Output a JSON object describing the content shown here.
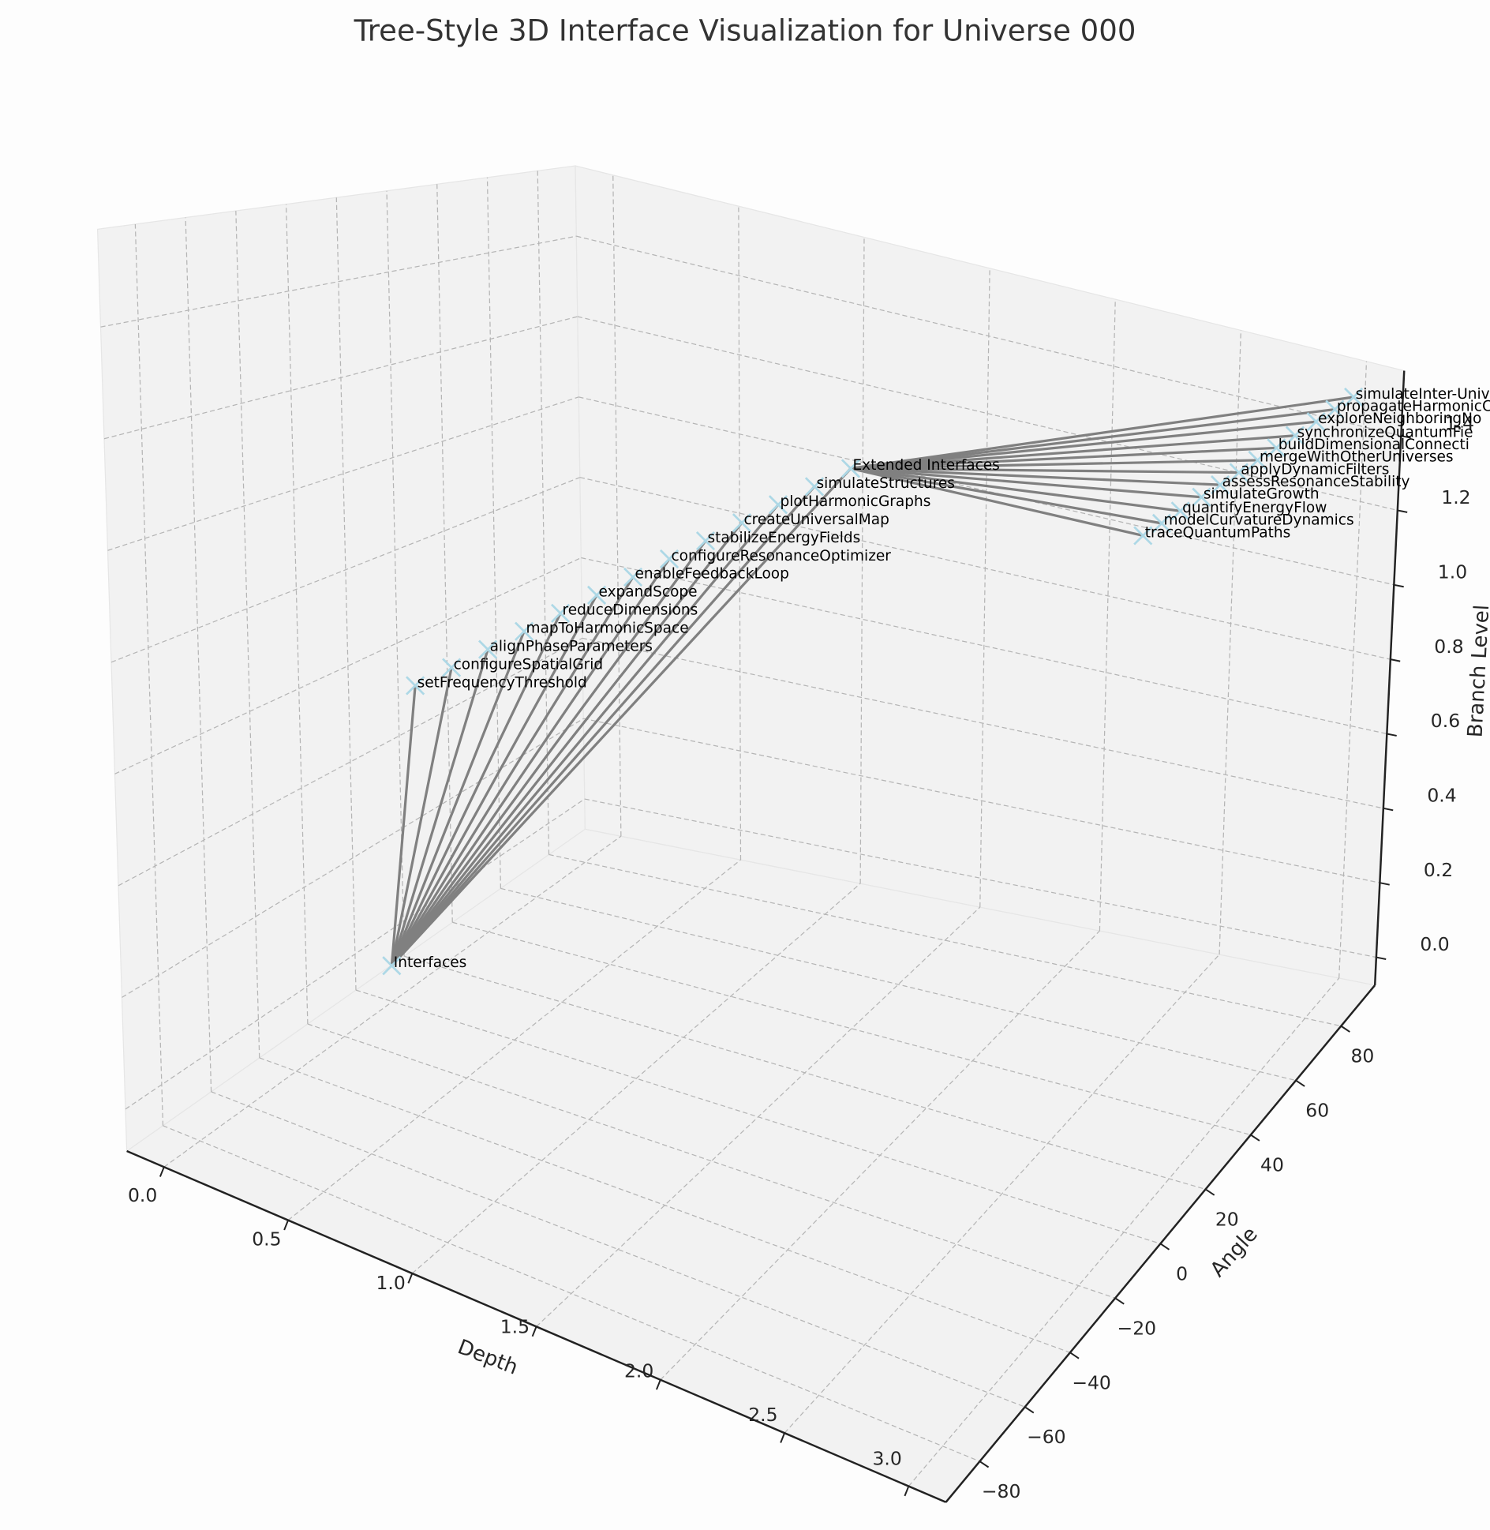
{
  "chart_data": {
    "type": "tree3d",
    "title": "Tree-Style 3D Interface Visualization for Universe 000",
    "x_label": "Depth",
    "y_label": "Angle",
    "z_label": "Branch Level",
    "xlim": [
      -0.15,
      3.15
    ],
    "ylim": [
      -95,
      95
    ],
    "zlim": [
      -0.075,
      1.575
    ],
    "xticks": [
      {
        "value": 0,
        "label": "0.0"
      },
      {
        "value": 0.5,
        "label": "0.5"
      },
      {
        "value": 1,
        "label": "1.0"
      },
      {
        "value": 1.5,
        "label": "1.5"
      },
      {
        "value": 2,
        "label": "2.0"
      },
      {
        "value": 2.5,
        "label": "2.5"
      },
      {
        "value": 3,
        "label": "3.0"
      }
    ],
    "yticks": [
      {
        "value": -80,
        "label": "−80"
      },
      {
        "value": -60,
        "label": "−60"
      },
      {
        "value": -40,
        "label": "−40"
      },
      {
        "value": -20,
        "label": "−20"
      },
      0,
      20,
      40,
      60,
      80
    ],
    "zticks": [
      {
        "value": 0,
        "label": "0.0"
      },
      {
        "value": 0.2,
        "label": "0.2"
      },
      {
        "value": 0.4,
        "label": "0.4"
      },
      {
        "value": 0.6,
        "label": "0.6"
      },
      {
        "value": 0.8,
        "label": "0.8"
      },
      {
        "value": 1,
        "label": "1.0"
      },
      {
        "value": 1.2,
        "label": "1.2"
      },
      {
        "value": 1.4,
        "label": "1.4"
      }
    ],
    "grid": true,
    "edge_color": "#808080",
    "marker_color": "#add8e6",
    "nodes": [
      {
        "label": "Interfaces",
        "depth": 0,
        "angle": 0,
        "level": 0,
        "parent": null
      },
      {
        "label": "setFrequencyThreshold",
        "depth": 1,
        "angle": -90,
        "level": 1,
        "parent": 0
      },
      {
        "label": "configureSpatialGrid",
        "depth": 1,
        "angle": -75,
        "level": 1,
        "parent": 0
      },
      {
        "label": "alignPhaseParameters",
        "depth": 1,
        "angle": -60,
        "level": 1,
        "parent": 0
      },
      {
        "label": "mapToHarmonicSpace",
        "depth": 1,
        "angle": -45,
        "level": 1,
        "parent": 0
      },
      {
        "label": "reduceDimensions",
        "depth": 1,
        "angle": -30,
        "level": 1,
        "parent": 0
      },
      {
        "label": "expandScope",
        "depth": 1,
        "angle": -15,
        "level": 1,
        "parent": 0
      },
      {
        "label": "enableFeedbackLoop",
        "depth": 1,
        "angle": 0,
        "level": 1,
        "parent": 0
      },
      {
        "label": "configureResonanceOptimizer",
        "depth": 1,
        "angle": 15,
        "level": 1,
        "parent": 0
      },
      {
        "label": "stabilizeEnergyFields",
        "depth": 1,
        "angle": 30,
        "level": 1,
        "parent": 0
      },
      {
        "label": "createUniversalMap",
        "depth": 1,
        "angle": 45,
        "level": 1,
        "parent": 0
      },
      {
        "label": "plotHarmonicGraphs",
        "depth": 1,
        "angle": 60,
        "level": 1,
        "parent": 0
      },
      {
        "label": "simulateStructures",
        "depth": 1,
        "angle": 75,
        "level": 1,
        "parent": 0
      },
      {
        "label": "Extended Interfaces",
        "depth": 1,
        "angle": 90,
        "level": 1,
        "parent": 0
      },
      {
        "label": "traceQuantumPaths",
        "depth": 3,
        "angle": 0,
        "level": 1.5,
        "parent": 13
      },
      {
        "label": "modelCurvatureDynamics",
        "depth": 3,
        "angle": 8,
        "level": 1.5,
        "parent": 13
      },
      {
        "label": "quantifyEnergyFlow",
        "depth": 3,
        "angle": 16,
        "level": 1.5,
        "parent": 13
      },
      {
        "label": "simulateGrowth",
        "depth": 3,
        "angle": 25,
        "level": 1.5,
        "parent": 13
      },
      {
        "label": "assessResonanceStability",
        "depth": 3,
        "angle": 33,
        "level": 1.5,
        "parent": 13
      },
      {
        "label": "applyDynamicFilters",
        "depth": 3,
        "angle": 41,
        "level": 1.5,
        "parent": 13
      },
      {
        "label": "mergeWithOtherUniverses",
        "depth": 3,
        "angle": 49,
        "level": 1.5,
        "parent": 13
      },
      {
        "label": "buildDimensionalConnecti",
        "depth": 3,
        "angle": 57,
        "level": 1.5,
        "parent": 13
      },
      {
        "label": "synchronizeQuantumFie",
        "depth": 3,
        "angle": 65,
        "level": 1.5,
        "parent": 13
      },
      {
        "label": "exploreNeighboringNo",
        "depth": 3,
        "angle": 74,
        "level": 1.5,
        "parent": 13
      },
      {
        "label": "propagateHarmonicC",
        "depth": 3,
        "angle": 82,
        "level": 1.5,
        "parent": 13
      },
      {
        "label": "simulateInter-Unive",
        "depth": 3,
        "angle": 90,
        "level": 1.5,
        "parent": 13
      }
    ]
  }
}
